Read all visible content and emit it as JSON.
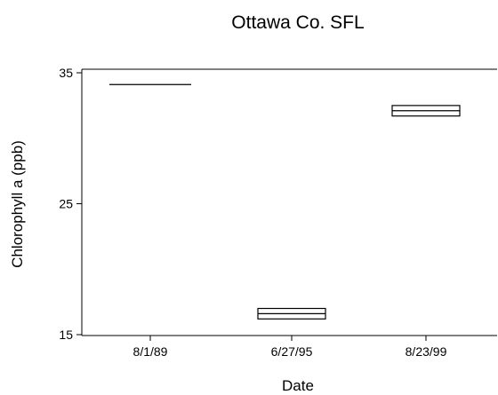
{
  "chart_data": {
    "type": "box",
    "title": "Ottawa Co. SFL",
    "xlabel": "Date",
    "ylabel": "Chlorophyll a (ppb)",
    "ylim": [
      15,
      35
    ],
    "yticks": [
      15,
      25,
      35
    ],
    "categories": [
      "8/1/89",
      "6/27/95",
      "8/23/99"
    ],
    "boxes": [
      {
        "category": "8/1/89",
        "q1": 34.1,
        "median": 34.1,
        "q3": 34.1
      },
      {
        "category": "6/27/95",
        "q1": 16.2,
        "median": 16.6,
        "q3": 17.0
      },
      {
        "category": "8/23/99",
        "q1": 31.7,
        "median": 32.1,
        "q3": 32.5
      }
    ],
    "grid": false,
    "legend": "none",
    "colors": {
      "line": "#000000",
      "background": "#ffffff"
    }
  }
}
